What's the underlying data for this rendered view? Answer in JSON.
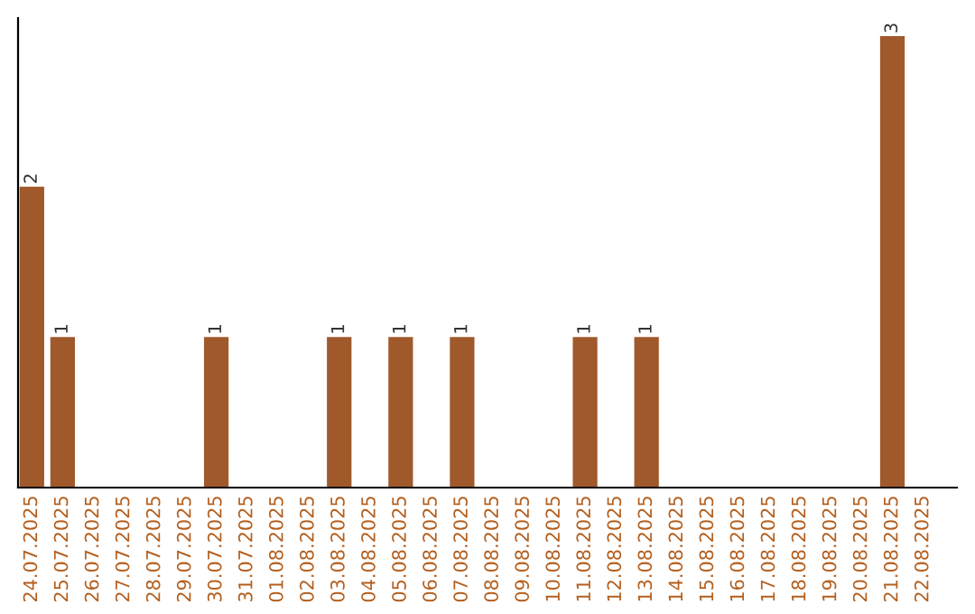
{
  "chart_data": {
    "type": "bar",
    "categories": [
      "24.07.2025",
      "25.07.2025",
      "26.07.2025",
      "27.07.2025",
      "28.07.2025",
      "29.07.2025",
      "30.07.2025",
      "31.07.2025",
      "01.08.2025",
      "02.08.2025",
      "03.08.2025",
      "04.08.2025",
      "05.08.2025",
      "06.08.2025",
      "07.08.2025",
      "08.08.2025",
      "09.08.2025",
      "10.08.2025",
      "11.08.2025",
      "12.08.2025",
      "13.08.2025",
      "14.08.2025",
      "15.08.2025",
      "16.08.2025",
      "17.08.2025",
      "18.08.2025",
      "19.08.2025",
      "20.08.2025",
      "21.08.2025",
      "22.08.2025"
    ],
    "values": [
      2,
      1,
      0,
      0,
      0,
      0,
      1,
      0,
      0,
      0,
      1,
      0,
      1,
      0,
      1,
      0,
      0,
      0,
      1,
      0,
      1,
      0,
      0,
      0,
      0,
      0,
      0,
      0,
      3,
      0
    ],
    "value_labels": [
      "2",
      "1",
      null,
      null,
      null,
      null,
      "1",
      null,
      null,
      null,
      "1",
      null,
      "1",
      null,
      "1",
      null,
      null,
      null,
      "1",
      null,
      "1",
      null,
      null,
      null,
      null,
      null,
      null,
      null,
      "3",
      null
    ],
    "color": "#a0592b",
    "ylim": [
      0,
      3.12
    ],
    "tick_labels": "x",
    "grid": false,
    "legend": false
  }
}
